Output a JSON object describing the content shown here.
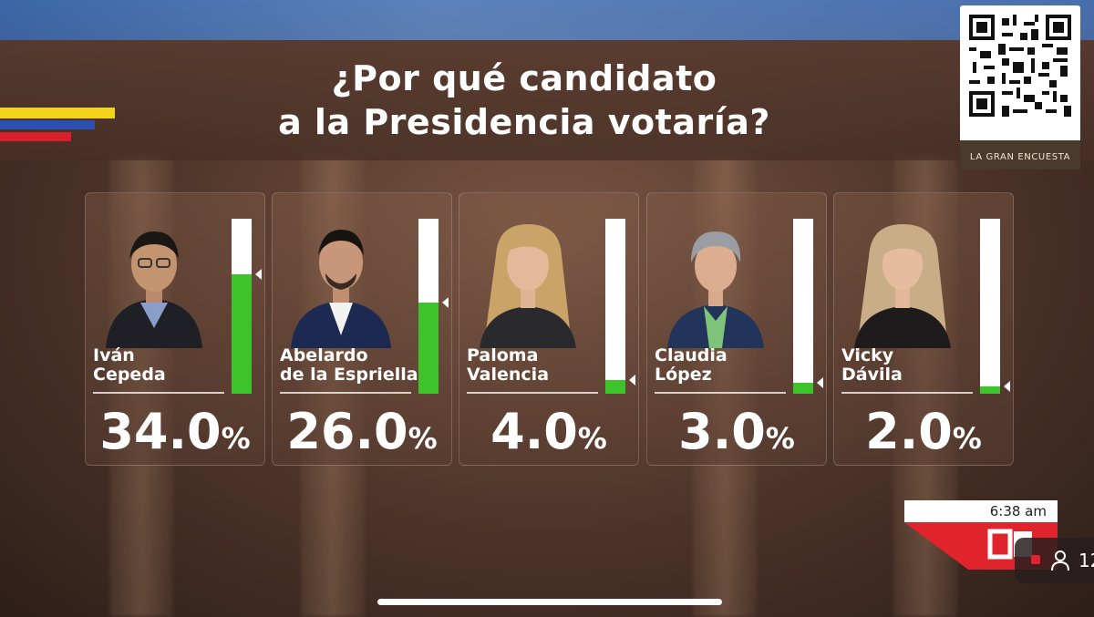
{
  "headline": {
    "line1": "¿Por qué candidato",
    "line2": "a la Presidencia votaría?"
  },
  "qr": {
    "caption": "LA GRAN ENCUESTA",
    "icon": "qr-code-icon"
  },
  "candidates": [
    {
      "first": "Iván",
      "last": "Cepeda",
      "value": "34.0",
      "sign": "%",
      "share": 0.34
    },
    {
      "first": "Abelardo",
      "last": "de la Espriella",
      "value": "26.0",
      "sign": "%",
      "share": 0.26
    },
    {
      "first": "Paloma",
      "last": "Valencia",
      "value": "4.0",
      "sign": "%",
      "share": 0.04
    },
    {
      "first": "Claudia",
      "last": "López",
      "value": "3.0",
      "sign": "%",
      "share": 0.03
    },
    {
      "first": "Vicky",
      "last": "Dávila",
      "value": "2.0",
      "sign": "%",
      "share": 0.02
    }
  ],
  "clock": {
    "time": "6:38 am"
  },
  "live": {
    "count": "12",
    "icon": "person-icon"
  },
  "colors": {
    "bar": "#3ec42b",
    "accent": "#d8202a",
    "flag_yellow": "#f2d21b",
    "flag_blue": "#2c4fb0"
  }
}
